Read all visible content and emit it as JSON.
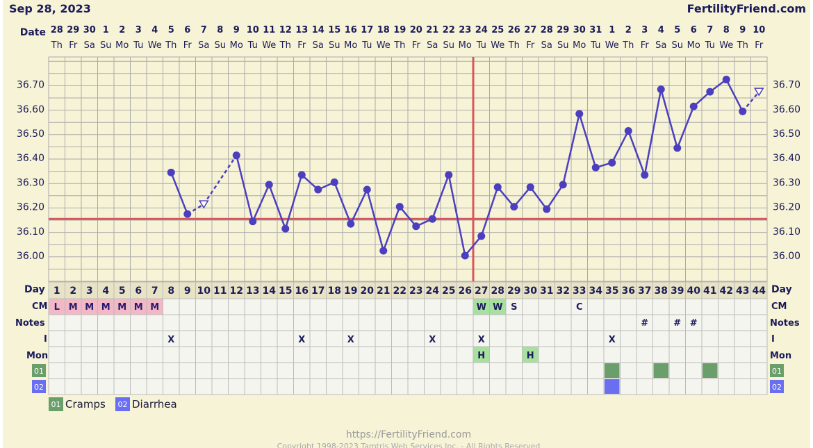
{
  "header": {
    "date": "Sep 28, 2023",
    "site": "FertilityFriend.com"
  },
  "footer": {
    "url": "https://FertilityFriend.com",
    "copyright": "Copyright 1998-2023 Tamtris Web Services Inc. - All Rights Reserved"
  },
  "labels": {
    "date_row": "Date",
    "day_row": "Day",
    "cm_row": "CM",
    "notes_row": "Notes",
    "i_row": "I",
    "mon_row": "Mon",
    "sym1_code": "01",
    "sym2_code": "02"
  },
  "legend": [
    {
      "code": "01",
      "label": "Cramps",
      "color": "#6a9e6a"
    },
    {
      "code": "02",
      "label": "Diarrhea",
      "color": "#6a6ef0"
    }
  ],
  "colors": {
    "background": "#f7f3d6",
    "grid": "#aaaaaa",
    "line": "#4b3fbf",
    "coverline": "#d9575a",
    "ovulation": "#d9575a",
    "period_cell": "#f2b8c6",
    "cm_highlight": "#a8e0a0",
    "cell": "#f5f5ef",
    "text": "#1b1b5a"
  },
  "chart_data": {
    "type": "line",
    "title": "",
    "xlabel": "Day",
    "ylabel": "",
    "ylim": [
      35.92,
      36.76
    ],
    "yticks": [
      "36.00",
      "36.10",
      "36.20",
      "36.30",
      "36.40",
      "36.50",
      "36.60",
      "36.70"
    ],
    "ytick_values": [
      36.0,
      36.1,
      36.2,
      36.3,
      36.4,
      36.5,
      36.6,
      36.7
    ],
    "grid": true,
    "coverline": 36.15,
    "ovulation_day": 27,
    "dates": [
      "28",
      "29",
      "30",
      "1",
      "2",
      "3",
      "4",
      "5",
      "6",
      "7",
      "8",
      "9",
      "10",
      "11",
      "12",
      "13",
      "14",
      "15",
      "16",
      "17",
      "18",
      "19",
      "20",
      "21",
      "22",
      "23",
      "24",
      "25",
      "26",
      "27",
      "28",
      "29",
      "30",
      "31",
      "1",
      "2",
      "3",
      "4",
      "5",
      "6",
      "7",
      "8",
      "9",
      "10"
    ],
    "weekdays": [
      "Th",
      "Fr",
      "Sa",
      "Su",
      "Mo",
      "Tu",
      "We",
      "Th",
      "Fr",
      "Sa",
      "Su",
      "Mo",
      "Tu",
      "We",
      "Th",
      "Fr",
      "Sa",
      "Su",
      "Mo",
      "Tu",
      "We",
      "Th",
      "Fr",
      "Sa",
      "Su",
      "Mo",
      "Tu",
      "We",
      "Th",
      "Fr",
      "Sa",
      "Su",
      "Mo",
      "Tu",
      "We",
      "Th",
      "Fr",
      "Sa",
      "Su",
      "Mo",
      "Tu",
      "We",
      "Th",
      "Fr"
    ],
    "days": [
      1,
      2,
      3,
      4,
      5,
      6,
      7,
      8,
      9,
      10,
      11,
      12,
      13,
      14,
      15,
      16,
      17,
      18,
      19,
      20,
      21,
      22,
      23,
      24,
      25,
      26,
      27,
      28,
      29,
      30,
      31,
      32,
      33,
      34,
      35,
      36,
      37,
      38,
      39,
      40,
      41,
      42,
      43,
      44
    ],
    "temps": [
      {
        "day": 8,
        "temp": 36.34
      },
      {
        "day": 9,
        "temp": 36.17
      },
      {
        "day": 10,
        "temp": 36.21,
        "discarded": true
      },
      {
        "day": 12,
        "temp": 36.41
      },
      {
        "day": 13,
        "temp": 36.14
      },
      {
        "day": 14,
        "temp": 36.29
      },
      {
        "day": 15,
        "temp": 36.11
      },
      {
        "day": 16,
        "temp": 36.33
      },
      {
        "day": 17,
        "temp": 36.27
      },
      {
        "day": 18,
        "temp": 36.3
      },
      {
        "day": 19,
        "temp": 36.13
      },
      {
        "day": 20,
        "temp": 36.27
      },
      {
        "day": 21,
        "temp": 36.02
      },
      {
        "day": 22,
        "temp": 36.2
      },
      {
        "day": 23,
        "temp": 36.12
      },
      {
        "day": 24,
        "temp": 36.15
      },
      {
        "day": 25,
        "temp": 36.33
      },
      {
        "day": 26,
        "temp": 36.0
      },
      {
        "day": 27,
        "temp": 36.08
      },
      {
        "day": 28,
        "temp": 36.28
      },
      {
        "day": 29,
        "temp": 36.2
      },
      {
        "day": 30,
        "temp": 36.28
      },
      {
        "day": 31,
        "temp": 36.19
      },
      {
        "day": 32,
        "temp": 36.29
      },
      {
        "day": 33,
        "temp": 36.58
      },
      {
        "day": 34,
        "temp": 36.36
      },
      {
        "day": 35,
        "temp": 36.38
      },
      {
        "day": 36,
        "temp": 36.51
      },
      {
        "day": 37,
        "temp": 36.33
      },
      {
        "day": 38,
        "temp": 36.68
      },
      {
        "day": 39,
        "temp": 36.44
      },
      {
        "day": 40,
        "temp": 36.61
      },
      {
        "day": 41,
        "temp": 36.67
      },
      {
        "day": 42,
        "temp": 36.72
      },
      {
        "day": 43,
        "temp": 36.59
      },
      {
        "day": 44,
        "temp": 36.67,
        "discarded": true
      }
    ],
    "cm": [
      {
        "day": 1,
        "value": "L",
        "kind": "period"
      },
      {
        "day": 2,
        "value": "M",
        "kind": "period"
      },
      {
        "day": 3,
        "value": "M",
        "kind": "period"
      },
      {
        "day": 4,
        "value": "M",
        "kind": "period"
      },
      {
        "day": 5,
        "value": "M",
        "kind": "period"
      },
      {
        "day": 6,
        "value": "M",
        "kind": "period"
      },
      {
        "day": 7,
        "value": "M",
        "kind": "period"
      },
      {
        "day": 27,
        "value": "W",
        "kind": "fertile"
      },
      {
        "day": 28,
        "value": "W",
        "kind": "fertile"
      },
      {
        "day": 29,
        "value": "S",
        "kind": "plain"
      },
      {
        "day": 33,
        "value": "C",
        "kind": "plain"
      }
    ],
    "notes": [
      {
        "day": 37,
        "value": "#"
      },
      {
        "day": 39,
        "value": "#"
      },
      {
        "day": 40,
        "value": "#"
      }
    ],
    "intercourse": [
      {
        "day": 8,
        "value": "X"
      },
      {
        "day": 16,
        "value": "X"
      },
      {
        "day": 19,
        "value": "X"
      },
      {
        "day": 24,
        "value": "X"
      },
      {
        "day": 27,
        "value": "X"
      },
      {
        "day": 35,
        "value": "X"
      }
    ],
    "monitor": [
      {
        "day": 27,
        "value": "H"
      },
      {
        "day": 30,
        "value": "H"
      }
    ],
    "symptom_cramps": [
      35,
      38,
      41
    ],
    "symptom_diarrhea": [
      35
    ]
  }
}
